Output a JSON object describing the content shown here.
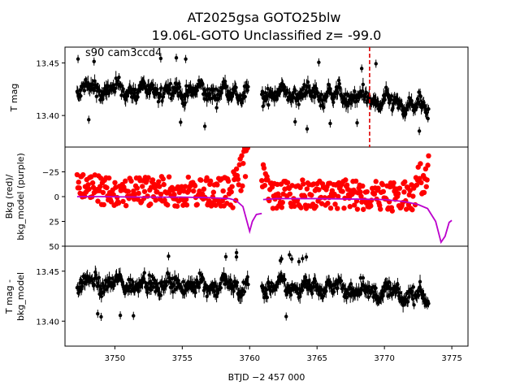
{
  "colors": {
    "points_black": "#000000",
    "points_red": "#ff0000",
    "model_purple": "#bb00cc",
    "marker_red": "#dd0000"
  },
  "chart_data": {
    "type": "scatter",
    "title_line1": "AT2025gsa  GOTO25blw",
    "title_line2": "19.06L-GOTO Unclassified z= -99.0",
    "annotation": "s90 cam3ccd4",
    "xlabel": "BTJD −2 457 000",
    "xlim": [
      3746.3,
      3776.2
    ],
    "xticks": [
      3750,
      3755,
      3760,
      3765,
      3770,
      3775
    ],
    "xtick_labels": [
      "3750",
      "3755",
      "3760",
      "3765",
      "3770",
      "3775"
    ],
    "vline_x": 3768.9,
    "gap": [
      3759.9,
      3760.9
    ],
    "panels": [
      {
        "id": "top",
        "ylabel": "T mag",
        "ylim": [
          13.465,
          13.37
        ],
        "yticks": [
          13.4,
          13.45
        ],
        "ytick_labels": [
          "13.40",
          "13.45"
        ],
        "series": [
          {
            "name": "T mag",
            "style": "errorbar-points",
            "color": "#000000",
            "baseline_a": [
              3747.2,
              13.425
            ],
            "baseline_b": [
              3773.3,
              13.418
            ],
            "late_rise": [
              3766.5,
              -0.012
            ],
            "spread": 0.028
          }
        ]
      },
      {
        "id": "middle",
        "ylabel_line1": "Bkg (red)/",
        "ylabel_line2": "bkg_model (purple)",
        "ylim": [
          -50,
          50
        ],
        "yticks": [
          50,
          25,
          0,
          -25
        ],
        "ytick_labels": [
          "50",
          "25",
          "0",
          "−25"
        ],
        "series": [
          {
            "name": "Bkg",
            "style": "points",
            "color": "#ff0000",
            "center_start": -7,
            "center_end": 0,
            "spread": 17
          },
          {
            "name": "bkg_model",
            "style": "line",
            "color": "#bb00cc",
            "x": [
              3747.2,
              3749,
              3752,
              3755,
              3757,
              3758.5,
              3759,
              3759.5,
              3759.8,
              3760.0,
              3760.2,
              3760.5,
              3760.9
            ],
            "y": [
              0,
              0,
              0.5,
              0.5,
              1,
              2,
              4,
              10,
              25,
              35,
              25,
              18,
              17
            ],
            "x2": [
              3761.0,
              3762,
              3765,
              3768,
              3770,
              3771.5,
              3772.5,
              3773.2,
              3773.8,
              3774.2,
              3774.5,
              3774.8,
              3775.0
            ],
            "y2": [
              3,
              2,
              2,
              2.5,
              3,
              5,
              8,
              12,
              25,
              46,
              40,
              26,
              24
            ]
          }
        ]
      },
      {
        "id": "bottom",
        "ylabel_line1": "T mag -",
        "ylabel_line2": "bkg_model",
        "ylim": [
          13.475,
          13.375
        ],
        "yticks": [
          13.4,
          13.45
        ],
        "ytick_labels": [
          "13.40",
          "13.45"
        ],
        "series": [
          {
            "name": "T mag - bkg_model",
            "style": "errorbar-points",
            "color": "#000000",
            "baseline_a": [
              3747.2,
              13.438
            ],
            "baseline_b": [
              3773.3,
              13.432
            ],
            "late_rise": [
              3766.5,
              -0.008
            ],
            "spread": 0.028
          }
        ]
      }
    ]
  }
}
